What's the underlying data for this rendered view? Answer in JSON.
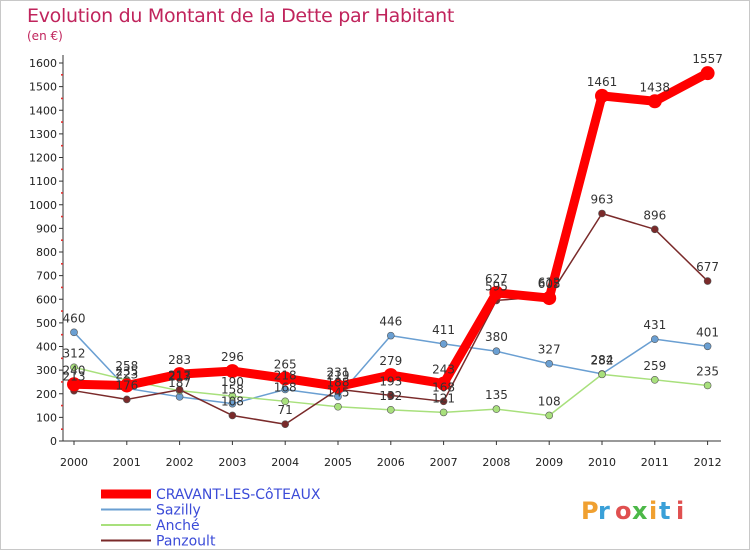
{
  "header": {
    "title": "Evolution du Montant de la Dette par Habitant",
    "subtitle": "(en €)"
  },
  "logo": {
    "text": "Proxiti",
    "colors": [
      "#f0a030",
      "#3aa0d8",
      "#e05050",
      "#4cb848",
      "#f0a030",
      "#3aa0d8",
      "#e05050"
    ]
  },
  "chart_data": {
    "type": "line",
    "title": "Evolution du Montant de la Dette par Habitant",
    "subtitle": "(en €)",
    "x": [
      "2000",
      "2001",
      "2002",
      "2003",
      "2004",
      "2005",
      "2006",
      "2007",
      "2008",
      "2009",
      "2010",
      "2011",
      "2012"
    ],
    "ylim": [
      0,
      1600
    ],
    "yticks": [
      0,
      100,
      200,
      300,
      400,
      500,
      600,
      700,
      800,
      900,
      1000,
      1100,
      1200,
      1300,
      1400,
      1500,
      1600
    ],
    "grid": false,
    "legend_position": "bottom-left",
    "series": [
      {
        "name": "CRAVANT-LES-CôTEAUX",
        "color": "#ff0000",
        "width": 9,
        "marker": 7,
        "values": [
          240,
          235,
          283,
          296,
          265,
          231,
          279,
          243,
          627,
          605,
          1461,
          1438,
          1557
        ]
      },
      {
        "name": "Sazilly",
        "color": "#6a9fd2",
        "width": 1.5,
        "marker": 3.5,
        "values": [
          460,
          223,
          187,
          158,
          218,
          188,
          446,
          411,
          380,
          327,
          284,
          431,
          401
        ]
      },
      {
        "name": "Anché",
        "color": "#a8e07c",
        "width": 1.5,
        "marker": 3.5,
        "values": [
          312,
          258,
          213,
          190,
          168,
          145,
          132,
          121,
          135,
          108,
          282,
          259,
          235
        ]
      },
      {
        "name": "Panzoult",
        "color": "#7a2a2a",
        "width": 1.5,
        "marker": 3.5,
        "values": [
          213,
          176,
          217,
          108,
          71,
          219,
          193,
          168,
          595,
          612,
          963,
          896,
          677
        ]
      }
    ]
  }
}
